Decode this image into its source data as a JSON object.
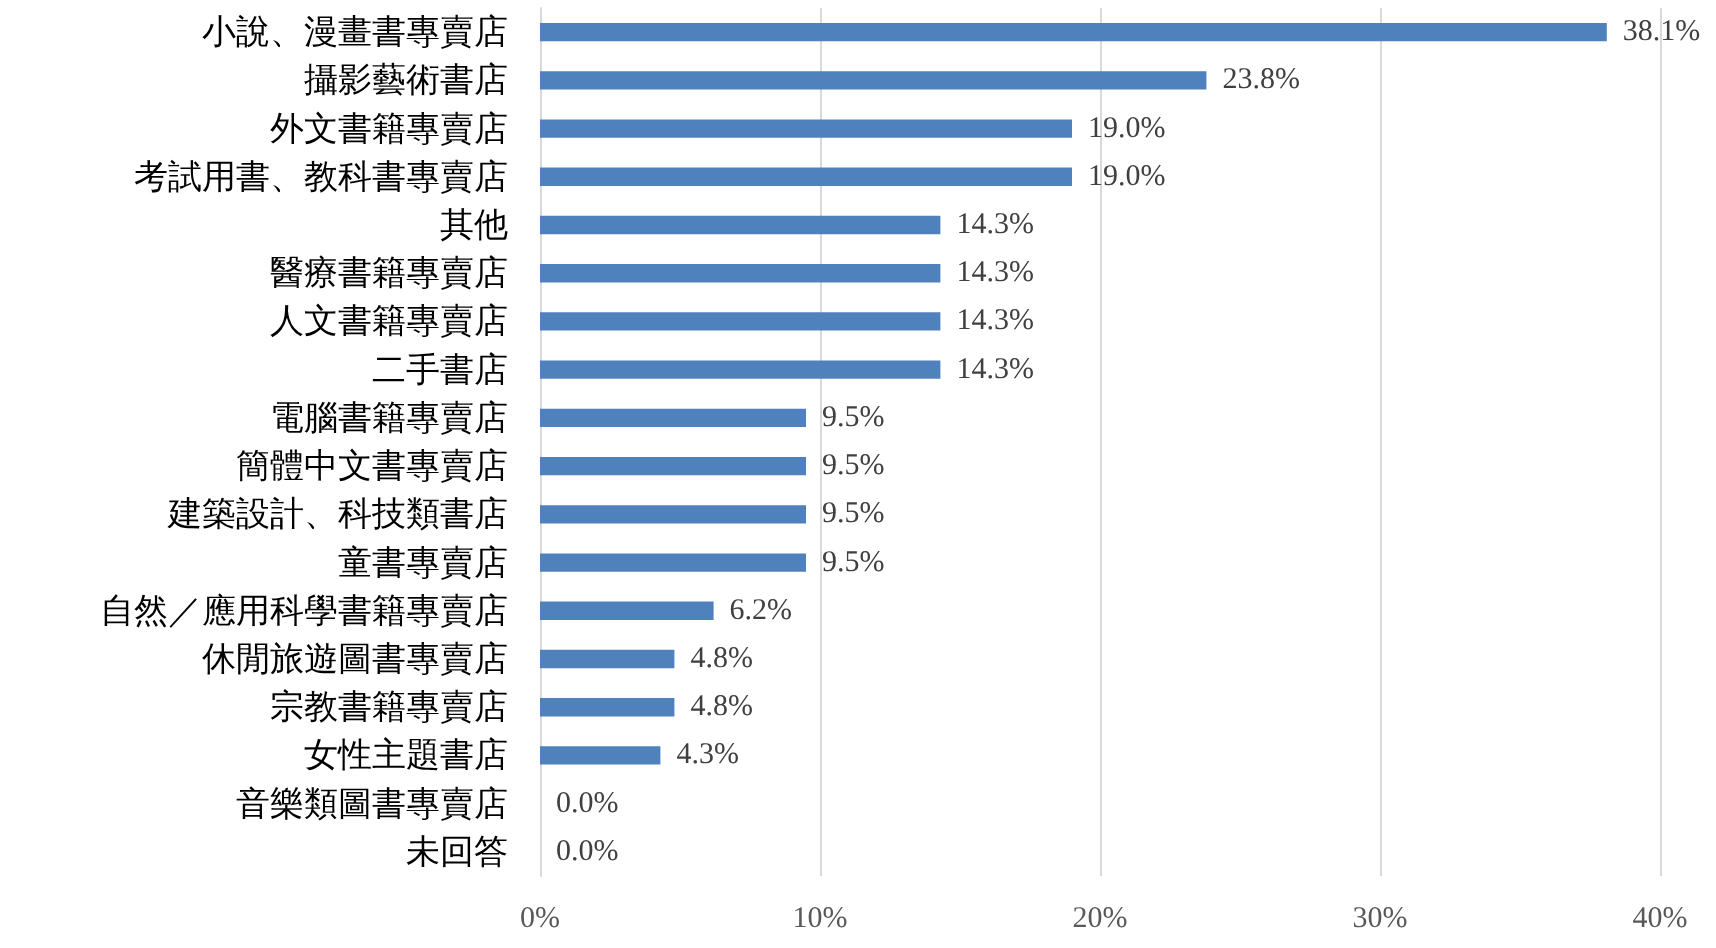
{
  "chart_data": {
    "type": "bar",
    "orientation": "horizontal",
    "categories": [
      "小說、漫畫書專賣店",
      "攝影藝術書店",
      "外文書籍專賣店",
      "考試用書、教科書專賣店",
      "其他",
      "醫療書籍專賣店",
      "人文書籍專賣店",
      "二手書店",
      "電腦書籍專賣店",
      "簡體中文書專賣店",
      "建築設計、科技類書店",
      "童書專賣店",
      "自然／應用科學書籍專賣店",
      "休閒旅遊圖書專賣店",
      "宗教書籍專賣店",
      "女性主題書店",
      "音樂類圖書專賣店",
      "未回答"
    ],
    "values": [
      38.1,
      23.8,
      19.0,
      19.0,
      14.3,
      14.3,
      14.3,
      14.3,
      9.5,
      9.5,
      9.5,
      9.5,
      6.2,
      4.8,
      4.8,
      4.3,
      0.0,
      0.0
    ],
    "value_labels": [
      "38.1%",
      "23.8%",
      "19.0%",
      "19.0%",
      "14.3%",
      "14.3%",
      "14.3%",
      "14.3%",
      "9.5%",
      "9.5%",
      "9.5%",
      "9.5%",
      "6.2%",
      "4.8%",
      "4.8%",
      "4.3%",
      "0.0%",
      "0.0%"
    ],
    "color": "#4f81bd",
    "xlim": [
      0,
      40
    ],
    "xticks": [
      {
        "value": 0,
        "label": "0%"
      },
      {
        "value": 10,
        "label": "10%"
      },
      {
        "value": 20,
        "label": "20%"
      },
      {
        "value": 30,
        "label": "30%"
      },
      {
        "value": 40,
        "label": "40%"
      }
    ],
    "grid": "x"
  }
}
